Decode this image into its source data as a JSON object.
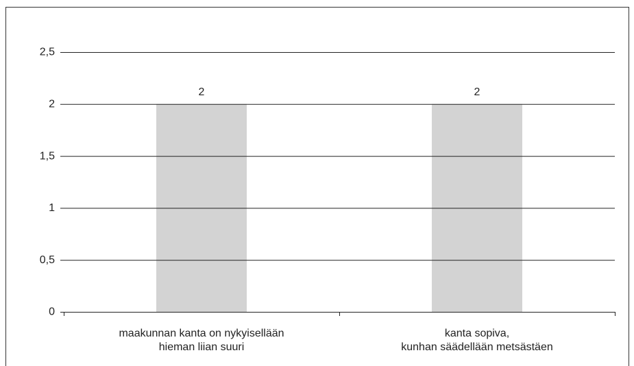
{
  "chart_data": {
    "type": "bar",
    "categories": [
      "maakunnan kanta on nykyisellään\nhieman liian suuri",
      "kanta sopiva,\nkunhan säädellään metsästäen"
    ],
    "values": [
      2,
      2
    ],
    "color": "#d3d3d3",
    "ylim": [
      0,
      2.5
    ],
    "yticks": [
      0,
      {
        "value": 0.5,
        "label": "0,5"
      },
      1,
      {
        "value": 1.5,
        "label": "1,5"
      },
      2,
      {
        "value": 2.5,
        "label": "2,5"
      }
    ],
    "grid": true
  }
}
